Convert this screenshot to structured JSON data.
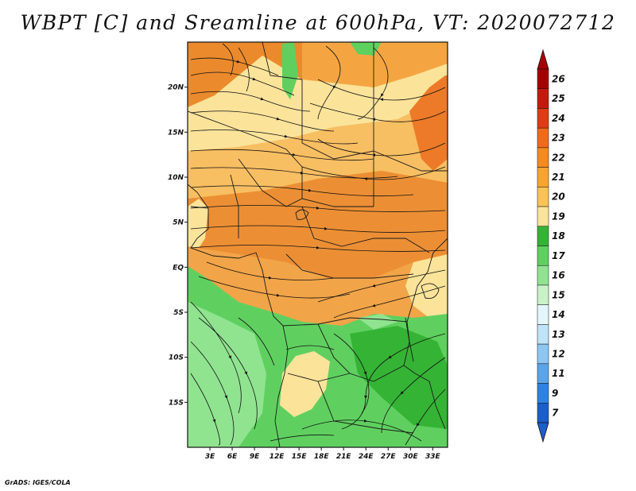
{
  "title": "WBPT [C] and Sreamline at 600hPa, VT: 2020072712",
  "credit": "GrADS: IGES/COLA",
  "map": {
    "lon_range": [
      0,
      35
    ],
    "lat_range": [
      -20,
      25
    ],
    "lat_ticks": [
      {
        "value": 20,
        "label": "20N"
      },
      {
        "value": 15,
        "label": "15N"
      },
      {
        "value": 10,
        "label": "10N"
      },
      {
        "value": 5,
        "label": "5N"
      },
      {
        "value": 0,
        "label": "EQ"
      },
      {
        "value": -5,
        "label": "5S"
      },
      {
        "value": -10,
        "label": "10S"
      },
      {
        "value": -15,
        "label": "15S"
      }
    ],
    "lon_ticks": [
      {
        "value": 3,
        "label": "3E"
      },
      {
        "value": 6,
        "label": "6E"
      },
      {
        "value": 9,
        "label": "9E"
      },
      {
        "value": 12,
        "label": "12E"
      },
      {
        "value": 15,
        "label": "15E"
      },
      {
        "value": 18,
        "label": "18E"
      },
      {
        "value": 21,
        "label": "21E"
      },
      {
        "value": 24,
        "label": "24E"
      },
      {
        "value": 27,
        "label": "27E"
      },
      {
        "value": 30,
        "label": "30E"
      },
      {
        "value": 33,
        "label": "33E"
      }
    ]
  },
  "colorbar": {
    "labels": [
      "26",
      "25",
      "24",
      "23",
      "22",
      "21",
      "20",
      "19",
      "18",
      "17",
      "16",
      "15",
      "14",
      "13",
      "12",
      "11",
      "9",
      "7"
    ],
    "colors": [
      "#a50000",
      "#c41a0c",
      "#e03b16",
      "#f06a1e",
      "#f48a22",
      "#f7a52e",
      "#fac258",
      "#fbe39a",
      "#35b335",
      "#5fd05f",
      "#90e490",
      "#c8f2c8",
      "#e2f6fb",
      "#bfe3f8",
      "#8cc6f3",
      "#5aa5ea",
      "#2f82e0",
      "#1b5fc9"
    ]
  },
  "palette": {
    "orange_dark": "#eb8a2c",
    "orange": "#f4a542",
    "orange_light": "#f8be62",
    "yellow": "#fbe39a",
    "green": "#5fd05f",
    "green_light": "#90e490",
    "green_dark": "#35b335"
  }
}
